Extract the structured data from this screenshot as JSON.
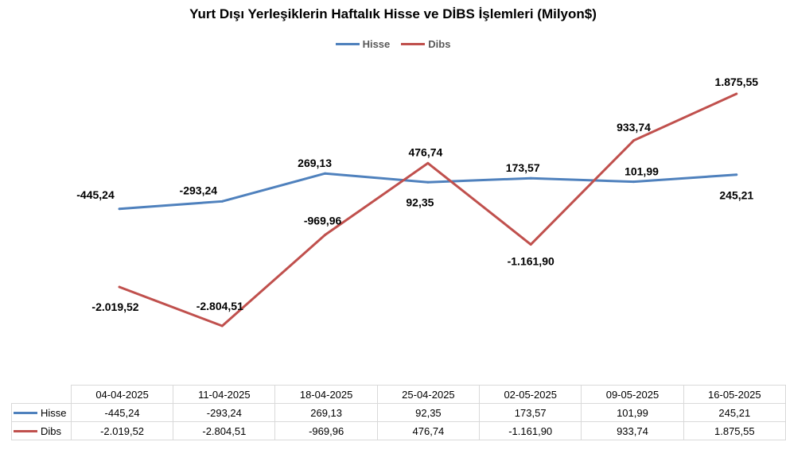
{
  "chart_data": {
    "type": "line",
    "title": "Yurt Dışı Yerleşiklerin Haftalık Hisse ve DİBS İşlemleri (Milyon$)",
    "categories": [
      "04-04-2025",
      "11-04-2025",
      "18-04-2025",
      "25-04-2025",
      "02-05-2025",
      "09-05-2025",
      "16-05-2025"
    ],
    "series": [
      {
        "name": "Hisse",
        "color": "#4f81bd",
        "values": [
          -445.24,
          -293.24,
          269.13,
          92.35,
          173.57,
          101.99,
          245.21
        ],
        "labels": [
          "-445,24",
          "-293,24",
          "269,13",
          "92,35",
          "173,57",
          "101,99",
          "245,21"
        ]
      },
      {
        "name": "Dibs",
        "color": "#c0504d",
        "values": [
          -2019.52,
          -2804.51,
          -969.96,
          476.74,
          -1161.9,
          933.74,
          1875.55
        ],
        "labels": [
          "-2.019,52",
          "-2.804,51",
          "-969,96",
          "476,74",
          "-1.161,90",
          "933,74",
          "1.875,55"
        ]
      }
    ],
    "ylim": [
      -3500,
      2500
    ],
    "grid": false,
    "legend_position": "top-center",
    "data_table": true
  }
}
